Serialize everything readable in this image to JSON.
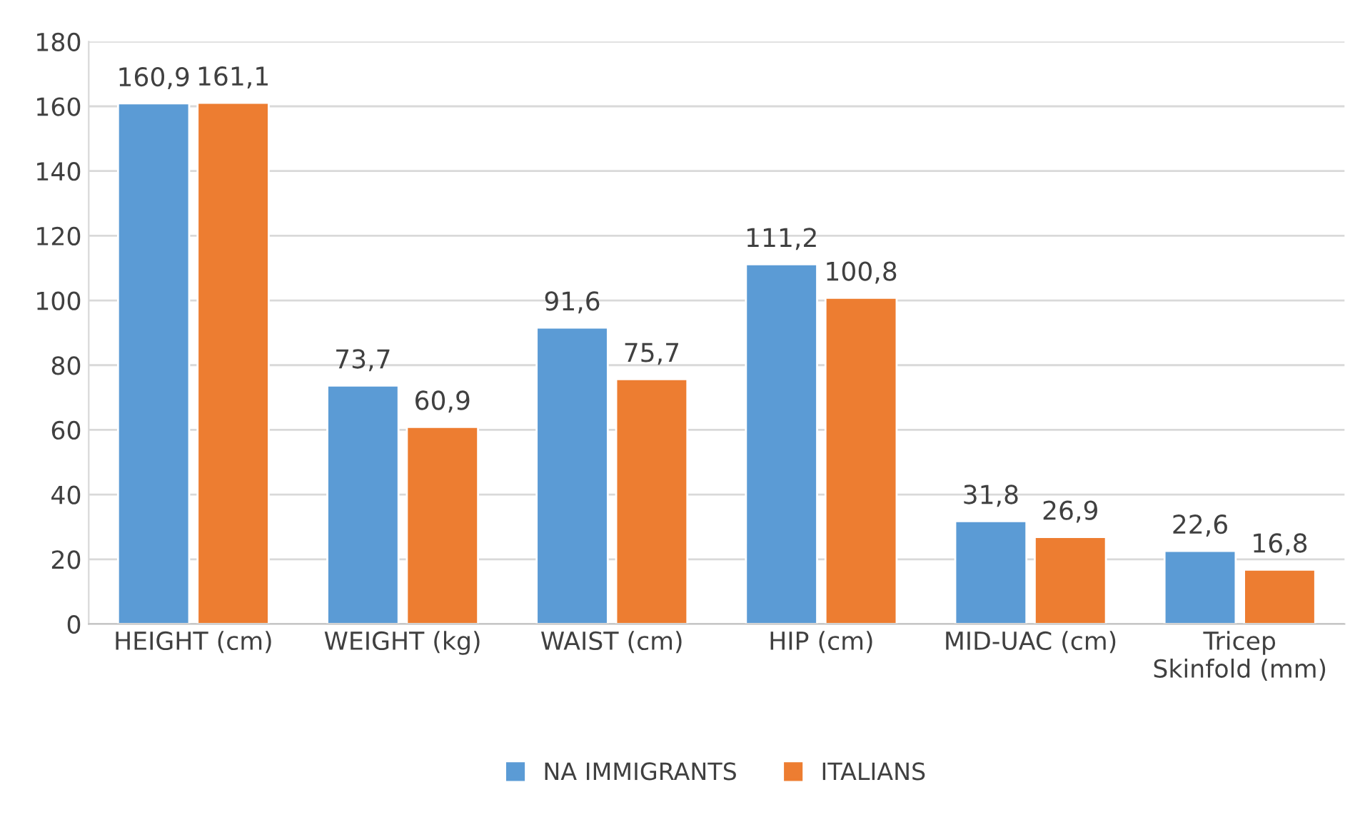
{
  "chart_data": {
    "type": "bar",
    "categories": [
      "HEIGHT (cm)",
      "WEIGHT (kg)",
      "WAIST (cm)",
      "HIP (cm)",
      "MID-UAC (cm)",
      "Tricep Skinfold (mm)"
    ],
    "series": [
      {
        "name": "NA IMMIGRANTS",
        "color": "#5b9bd5",
        "values": [
          160.9,
          73.7,
          91.6,
          111.2,
          31.8,
          22.6
        ],
        "value_labels": [
          "160,9",
          "73,7",
          "91,6",
          "111,2",
          "31,8",
          "22,6"
        ]
      },
      {
        "name": "ITALIANS",
        "color": "#ed7d31",
        "values": [
          161.1,
          60.9,
          75.7,
          100.8,
          26.9,
          16.8
        ],
        "value_labels": [
          "161,1",
          "60,9",
          "75,7",
          "100,8",
          "26,9",
          "16,8"
        ]
      }
    ],
    "ylim": [
      0,
      180
    ],
    "yticks": [
      0,
      20,
      40,
      60,
      80,
      100,
      120,
      140,
      160,
      180
    ],
    "grid": "y",
    "legend": "bottom"
  }
}
